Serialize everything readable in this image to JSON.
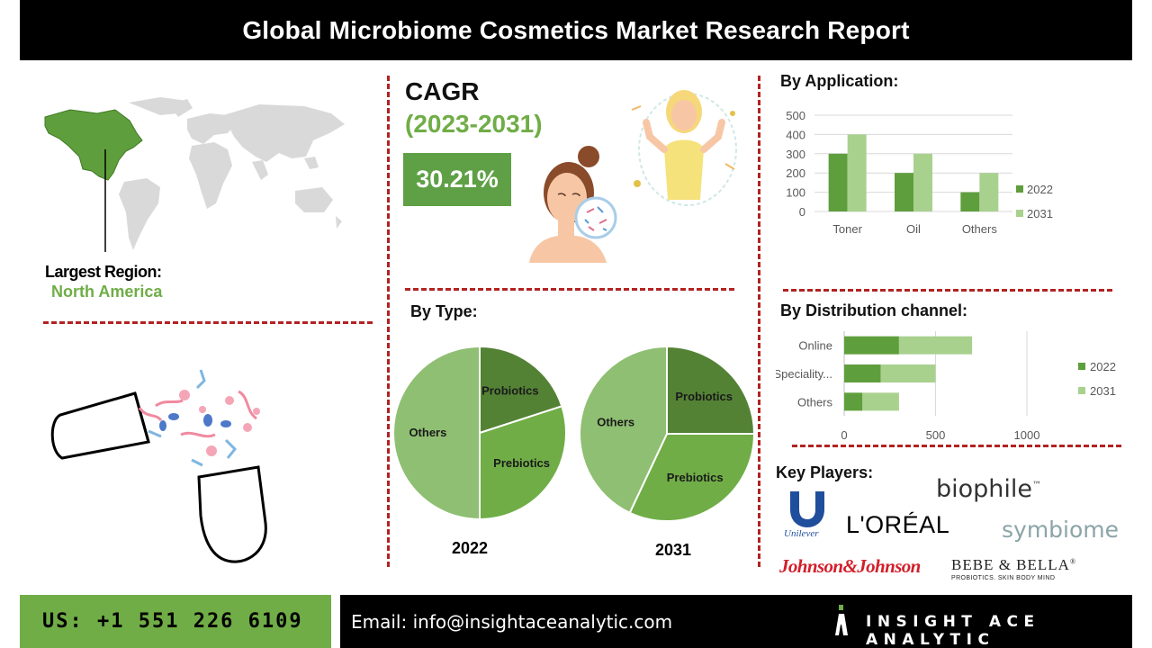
{
  "title": "Global Microbiome Cosmetics Market Research Report",
  "cagr": {
    "label": "CAGR",
    "years": "(2023-2031)",
    "value": "30.21%"
  },
  "region": {
    "label": "Largest Region:",
    "value": "North America"
  },
  "sections": {
    "application": "By Application:",
    "type": "By Type:",
    "distribution": "By Distribution channel:",
    "players": "Key Players:"
  },
  "players": {
    "unilever": "Unilever",
    "biophile": "biophile",
    "biophile_tm": "™",
    "loreal": "L'ORÉAL",
    "symbiome": "symbiome",
    "jnj": "Johnson&Johnson",
    "bebe": "BEBE & BELLA",
    "bebe_tm": "®",
    "bebe_tag": "PROBIOTICS. SKIN BODY MIND"
  },
  "footer": {
    "phone": "US: +1 551 226 6109",
    "email": "Email: info@insightaceanalytic.com",
    "brand": "INSIGHT ACE ANALYTIC"
  },
  "colors": {
    "dark_green": "#5f9e3c",
    "light_green": "#a9d18e",
    "pie_dark": "#548235",
    "pie_mid": "#70ad47",
    "pie_light": "#8fbf72",
    "accent_red": "#b22222"
  },
  "chart_data": [
    {
      "type": "bar",
      "title": "By Application:",
      "categories": [
        "Toner",
        "Oil",
        "Others"
      ],
      "series": [
        {
          "name": "2022",
          "values": [
            300,
            200,
            100
          ]
        },
        {
          "name": "2031",
          "values": [
            400,
            300,
            200
          ]
        }
      ],
      "ylim": [
        0,
        500
      ],
      "yticks": [
        0,
        100,
        200,
        300,
        400,
        500
      ],
      "grid": true,
      "legend": "right"
    },
    {
      "type": "bar",
      "orientation": "horizontal",
      "stacked": true,
      "title": "By Distribution channel:",
      "categories": [
        "Online",
        "Speciality...",
        "Others"
      ],
      "series": [
        {
          "name": "2022",
          "values": [
            300,
            200,
            100
          ]
        },
        {
          "name": "2031",
          "values": [
            400,
            300,
            200
          ]
        }
      ],
      "xlim": [
        0,
        1000
      ],
      "xticks": [
        0,
        500,
        1000
      ],
      "grid": true,
      "legend": "right"
    },
    {
      "type": "pie",
      "title": "2022",
      "slices": [
        {
          "label": "Probiotics",
          "value": 20
        },
        {
          "label": "Prebiotics",
          "value": 30
        },
        {
          "label": "Others",
          "value": 50
        }
      ]
    },
    {
      "type": "pie",
      "title": "2031",
      "slices": [
        {
          "label": "Probiotics",
          "value": 25
        },
        {
          "label": "Prebiotics",
          "value": 32
        },
        {
          "label": "Others",
          "value": 43
        }
      ]
    }
  ]
}
